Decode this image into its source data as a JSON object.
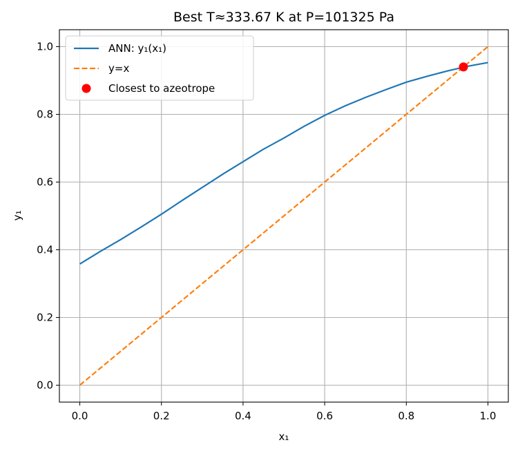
{
  "chart_data": {
    "type": "line",
    "title": "Best T≈333.67 K at P=101325 Pa",
    "xlabel": "x₁",
    "ylabel": "y₁",
    "xlim": [
      -0.05,
      1.05
    ],
    "ylim": [
      -0.05,
      1.05
    ],
    "xticks": [
      0.0,
      0.2,
      0.4,
      0.6,
      0.8,
      1.0
    ],
    "xtick_labels": [
      "0.0",
      "0.2",
      "0.4",
      "0.6",
      "0.8",
      "1.0"
    ],
    "yticks": [
      0.0,
      0.2,
      0.4,
      0.6,
      0.8,
      1.0
    ],
    "ytick_labels": [
      "0.0",
      "0.2",
      "0.4",
      "0.6",
      "0.8",
      "1.0"
    ],
    "grid": true,
    "legend_position": "top-left",
    "series": [
      {
        "name": "ANN: y₁(x₁)",
        "kind": "line",
        "style": "solid",
        "color": "#1f77b4",
        "x": [
          0.0,
          0.05,
          0.1,
          0.15,
          0.2,
          0.25,
          0.3,
          0.35,
          0.4,
          0.45,
          0.5,
          0.55,
          0.6,
          0.65,
          0.7,
          0.75,
          0.8,
          0.85,
          0.9,
          0.95,
          1.0
        ],
        "y": [
          0.358,
          0.395,
          0.43,
          0.467,
          0.505,
          0.545,
          0.584,
          0.623,
          0.66,
          0.697,
          0.73,
          0.765,
          0.797,
          0.825,
          0.85,
          0.873,
          0.895,
          0.912,
          0.928,
          0.942,
          0.953
        ]
      },
      {
        "name": "y=x",
        "kind": "line",
        "style": "dashed",
        "color": "#ff7f0e",
        "x": [
          0.0,
          1.0
        ],
        "y": [
          0.0,
          1.0
        ]
      },
      {
        "name": "Closest to azeotrope",
        "kind": "scatter",
        "color": "#ff0000",
        "x": [
          0.94
        ],
        "y": [
          0.94
        ]
      }
    ]
  }
}
